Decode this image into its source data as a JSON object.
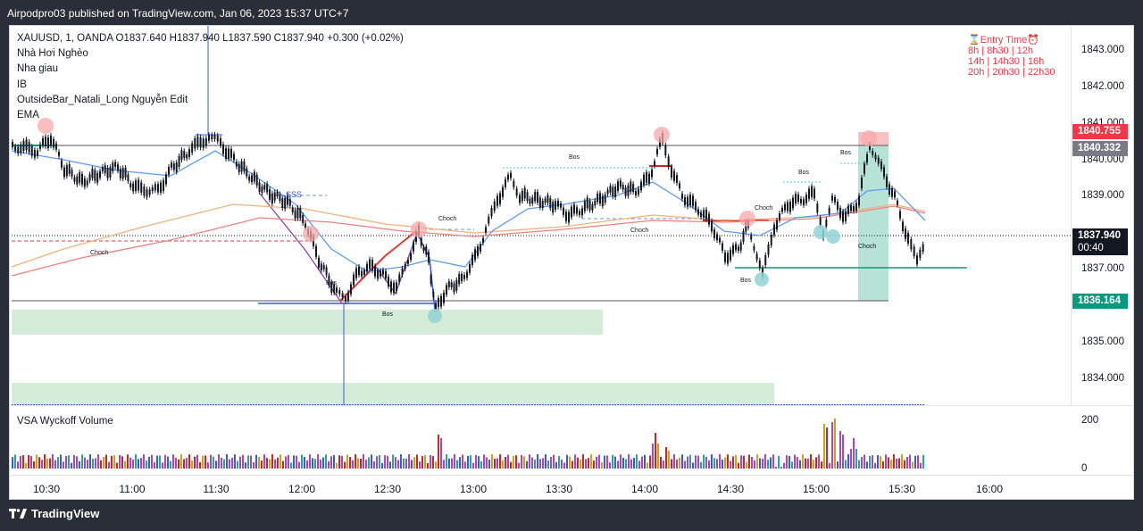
{
  "publisher_line": "Airpodpro03 published on TradingView.com, Jan 06, 2023 15:37 UTC+7",
  "symbol_line": "XAUUSD, 1, OANDA  O1837.640  H1837.940  L1837.590  C1837.940  +0.300 (+0.02%)",
  "indicators": [
    "Nhà Hơi Nghèo",
    "Nha giau",
    "IB",
    "OutsideBar_Natali_Long Nguyễn Edit",
    "EMA"
  ],
  "entry_time": {
    "title": "⌛Entry Time⏰",
    "rows": [
      "8h | 8h30 | 12h",
      "14h | 14h30 | 16h",
      "20h | 20h30 | 22h30"
    ]
  },
  "price_ticks": [
    "1843.000",
    "1842.000",
    "1841.000",
    "1840.000",
    "1839.000",
    "1837.000",
    "1836.000",
    "1835.000",
    "1834.000"
  ],
  "price_labels": {
    "top_red": "1840.755",
    "gray": "1840.332",
    "last_price": "1837.940",
    "countdown": "00:40",
    "green": "1836.164"
  },
  "chart_annotations": [
    "Bos",
    "Choch",
    "SSS"
  ],
  "volume": {
    "title": "VSA Wyckoff Volume",
    "ticks": [
      "200",
      "0"
    ]
  },
  "time_labels": [
    "10:30",
    "11:00",
    "11:30",
    "12:00",
    "12:30",
    "13:00",
    "13:30",
    "14:00",
    "14:30",
    "15:00",
    "15:30",
    "16:00"
  ],
  "footer_brand": "TradingView",
  "colors": {
    "background": "#2a2e39",
    "up_candle": "#131722",
    "bear_label": "#f23645",
    "bull_label": "#089981",
    "zone_green": "#d5ecd8",
    "ema_blue": "#5b9cf6",
    "ema_orange": "#f0b27a",
    "ema_red": "#f08080"
  }
}
